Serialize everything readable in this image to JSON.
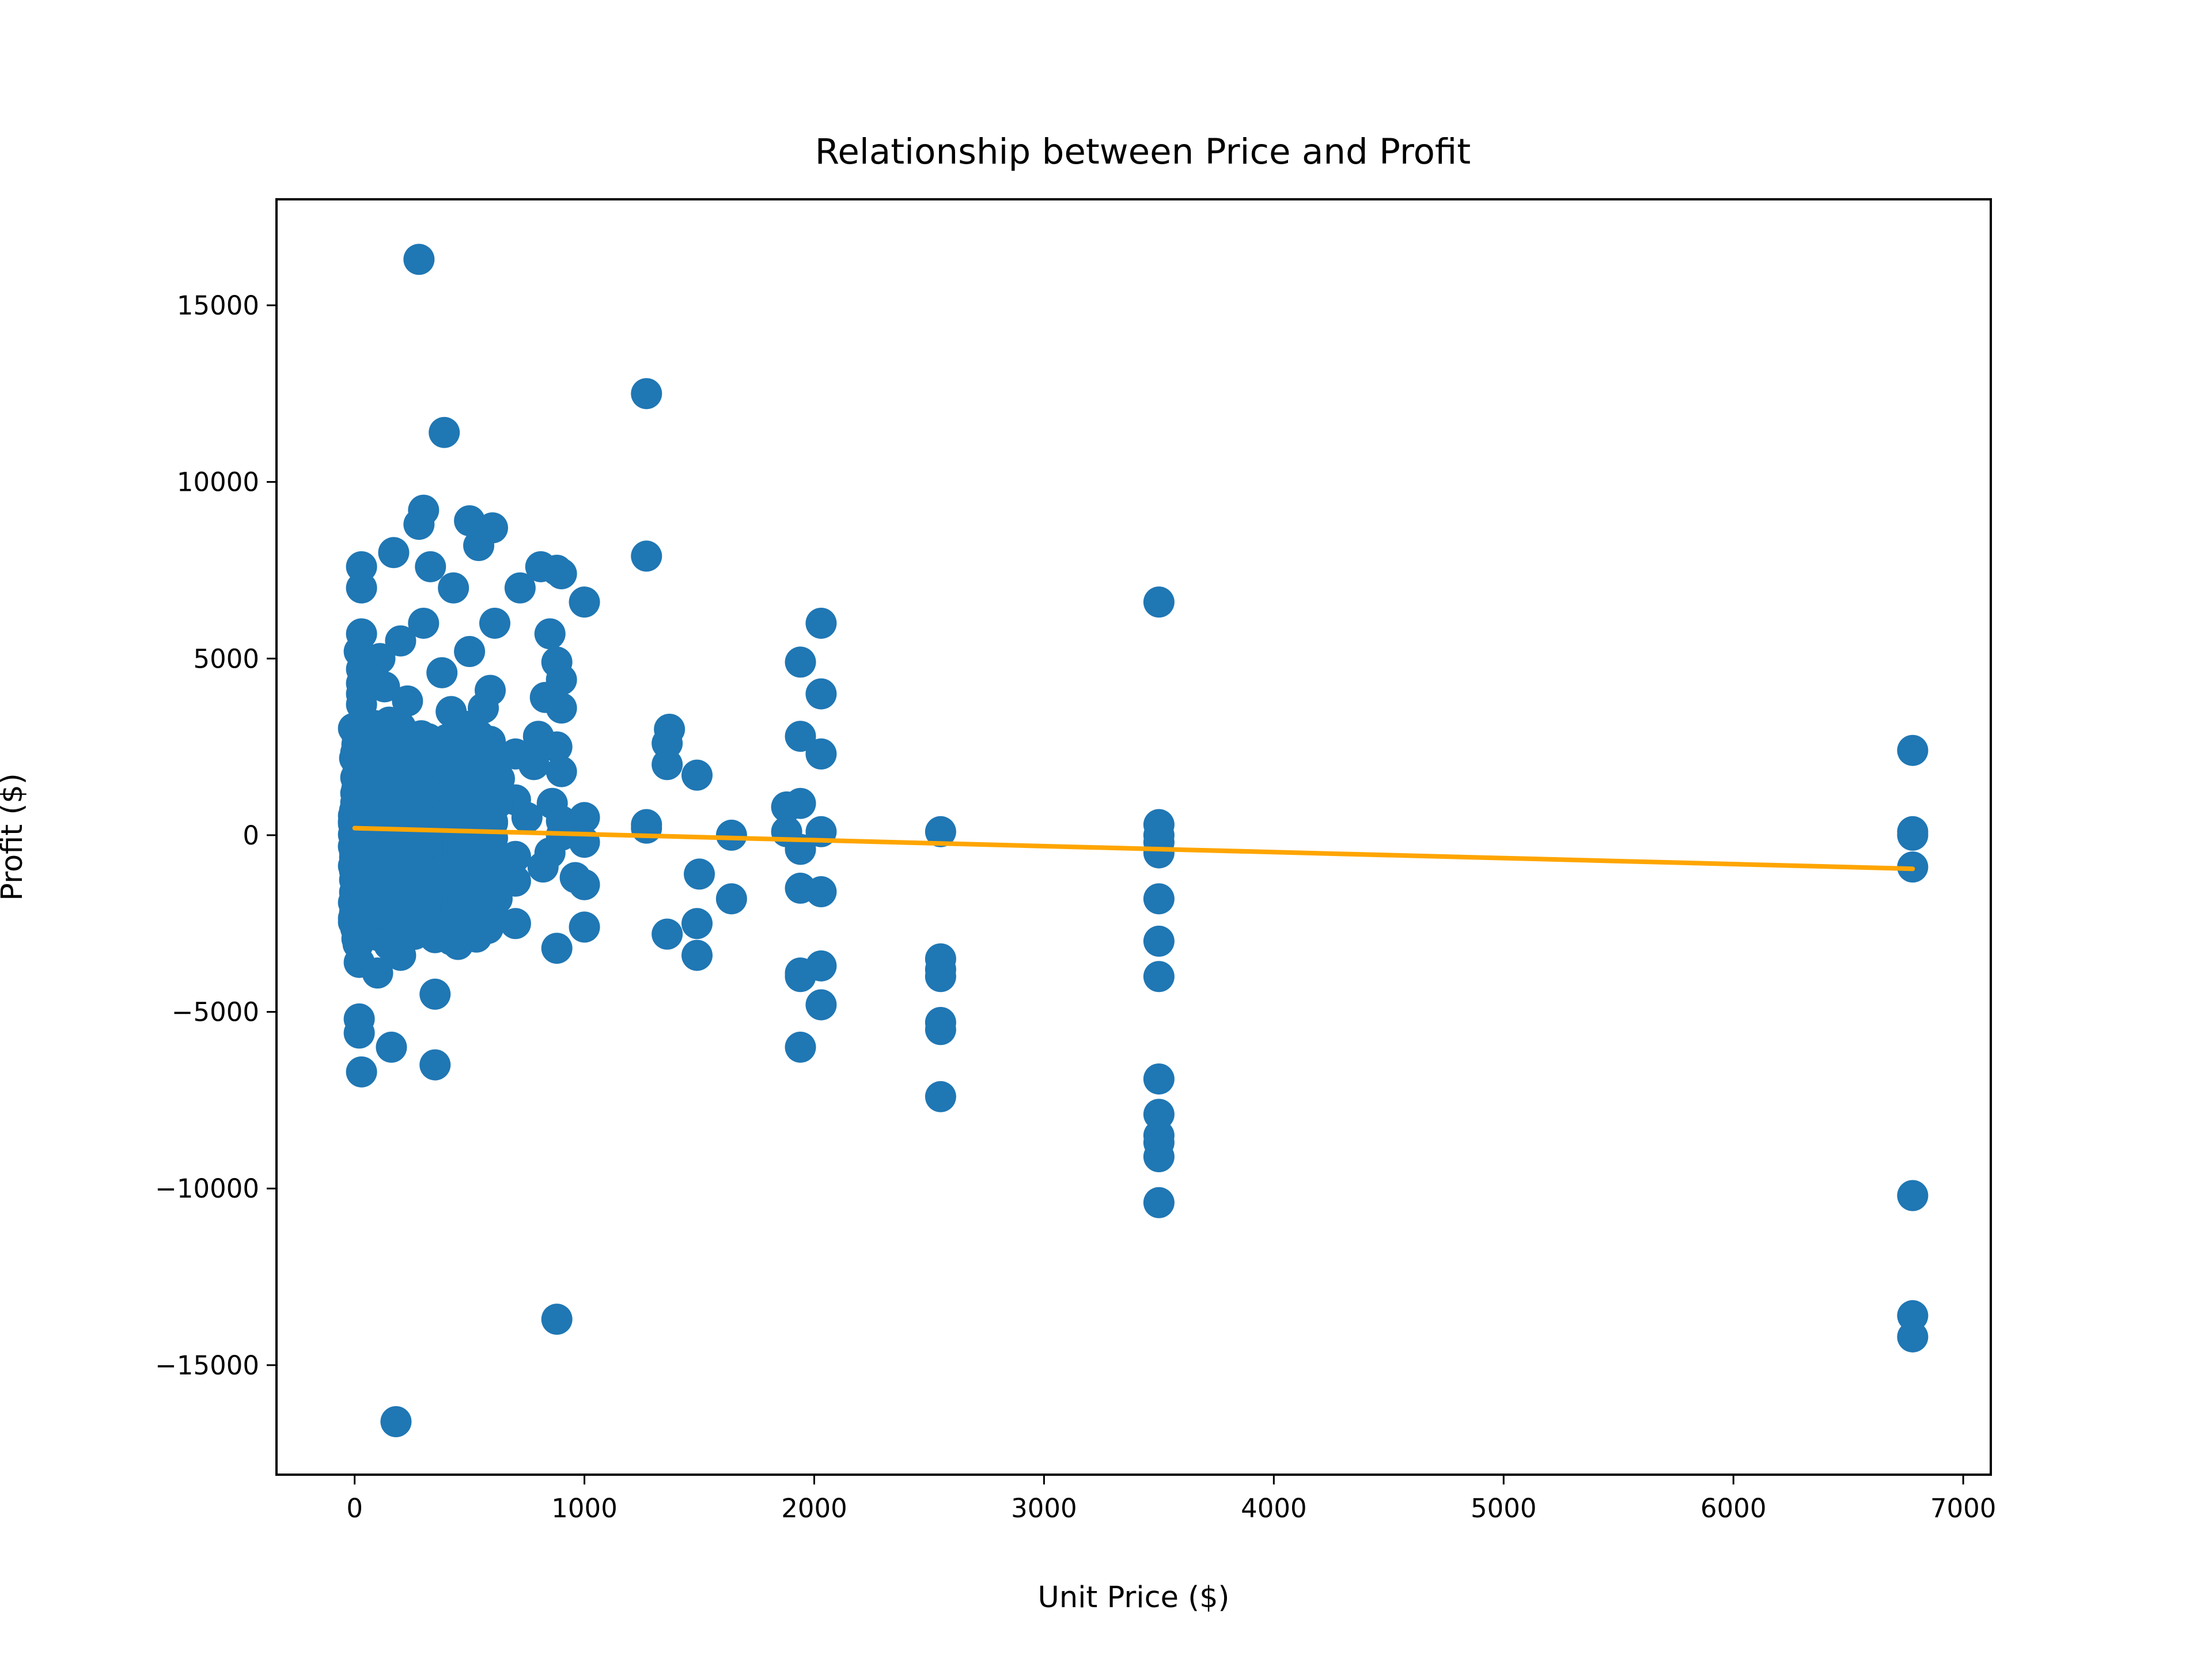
{
  "chart_data": {
    "type": "scatter",
    "title": "Relationship between Price and Profit",
    "xlabel": "Unit Price ($)",
    "ylabel": "Profit ($)",
    "xlim": [
      -340,
      7120
    ],
    "ylim": [
      -18100,
      18000
    ],
    "xticks": [
      0,
      1000,
      2000,
      3000,
      4000,
      5000,
      6000,
      7000
    ],
    "yticks": [
      -15000,
      -10000,
      -5000,
      0,
      5000,
      10000,
      15000
    ],
    "xtick_labels": [
      "0",
      "1000",
      "2000",
      "3000",
      "4000",
      "5000",
      "6000",
      "7000"
    ],
    "ytick_labels": [
      "−15000",
      "−10000",
      "−5000",
      "0",
      "5000",
      "10000",
      "15000"
    ],
    "grid": false,
    "legend": false,
    "colors": {
      "points": "#1f77b4",
      "trend": "#ffa500"
    },
    "series": [
      {
        "type": "scatter",
        "x": [
          280,
          1270,
          390,
          300,
          500,
          600,
          280,
          540,
          900,
          170,
          30,
          30,
          330,
          810,
          880,
          720,
          430,
          1000,
          1270,
          30,
          300,
          610,
          20,
          200,
          110,
          850,
          30,
          500,
          880,
          30,
          30,
          900,
          380,
          130,
          590,
          30,
          230,
          420,
          560,
          830,
          900,
          90,
          130,
          30,
          150,
          280,
          370,
          470,
          540,
          700,
          800,
          880,
          20,
          80,
          220,
          350,
          500,
          630,
          780,
          900,
          40,
          200,
          300,
          420,
          560,
          700,
          860,
          1000,
          950,
          20,
          60,
          250,
          400,
          520,
          620,
          750,
          900,
          1270,
          1270,
          1370,
          1490,
          1640,
          30,
          100,
          200,
          310,
          470,
          560,
          700,
          850,
          900,
          1000,
          20,
          140,
          260,
          400,
          550,
          680,
          820,
          960,
          1000,
          40,
          230,
          330,
          470,
          620,
          700,
          1000,
          1360,
          1490,
          1490,
          1640,
          30,
          110,
          220,
          350,
          440,
          700,
          880,
          20,
          200,
          340,
          20,
          20,
          100,
          20,
          350,
          350,
          160,
          30,
          180,
          880,
          1360,
          1360,
          1500,
          1880,
          1940,
          1940,
          1940,
          1940,
          1940,
          1880,
          1940,
          1940,
          1940,
          2030,
          2030,
          2030,
          2030,
          2030,
          2030,
          2030,
          2550,
          2550,
          2550,
          2550,
          2550,
          2550,
          2550,
          3500,
          3500,
          3500,
          3500,
          3500,
          3500,
          3500,
          3500,
          3500,
          3500,
          3500,
          3500,
          3500,
          3500,
          6780,
          6780,
          6780,
          6780,
          6780,
          6780,
          6780
        ],
        "y": [
          16300,
          12500,
          11400,
          9200,
          8900,
          8700,
          8800,
          8200,
          7400,
          8000,
          7600,
          7000,
          7600,
          7600,
          7500,
          7000,
          7000,
          6600,
          7900,
          5700,
          6000,
          6000,
          5200,
          5500,
          5000,
          5700,
          4700,
          5200,
          4900,
          4300,
          4000,
          4400,
          4600,
          4200,
          4100,
          3700,
          3800,
          3500,
          3600,
          3900,
          3600,
          3100,
          2500,
          2900,
          3200,
          2700,
          2600,
          2400,
          2500,
          2300,
          2800,
          2500,
          2200,
          1900,
          1800,
          2100,
          1700,
          1600,
          2000,
          1800,
          1400,
          1300,
          1200,
          1100,
          1200,
          1000,
          900,
          500,
          300,
          1000,
          700,
          800,
          600,
          700,
          900,
          500,
          400,
          300,
          200,
          3000,
          1700,
          0,
          -200,
          -100,
          -300,
          -200,
          -400,
          -100,
          -600,
          -500,
          0,
          -200,
          -900,
          -700,
          -800,
          -1000,
          -1100,
          -800,
          -900,
          -1200,
          -1400,
          -1500,
          -1600,
          -1400,
          -1700,
          -1800,
          -1300,
          -2600,
          -2800,
          -2500,
          -3400,
          -1800,
          -2000,
          -2200,
          -2400,
          -2900,
          -2700,
          -2500,
          -3200,
          -3000,
          -3400,
          -2700,
          -3600,
          -5200,
          -3900,
          -5600,
          -4500,
          -6500,
          -6000,
          -6700,
          -16600,
          -13700,
          2600,
          2000,
          -1100,
          800,
          4900,
          2800,
          900,
          -400,
          -1500,
          100,
          -4000,
          -6000,
          -3900,
          6000,
          4000,
          2300,
          100,
          -1600,
          -3700,
          -4800,
          100,
          -3500,
          -3800,
          -4000,
          -5300,
          -5500,
          -7400,
          6600,
          300,
          0,
          -200,
          -500,
          -1800,
          -3000,
          -4000,
          -6900,
          -7900,
          -8500,
          -8700,
          -9100,
          -10400,
          2400,
          100,
          -900,
          -10200,
          -13600,
          -14200,
          0
        ]
      },
      {
        "type": "line",
        "name": "trend",
        "x": [
          0,
          6780
        ],
        "y": [
          200,
          -950
        ]
      }
    ],
    "extra_points_x": [
      -5,
      0,
      5,
      10,
      15,
      20,
      25,
      30,
      40,
      50,
      60,
      70,
      80,
      90,
      100,
      110,
      120,
      130,
      140,
      150,
      160,
      170,
      180,
      190,
      200,
      210,
      220,
      230,
      240,
      250,
      260,
      270,
      280,
      290,
      300,
      310,
      320,
      330,
      340,
      350,
      360,
      370,
      380,
      390,
      400,
      410,
      420,
      430,
      440,
      450,
      460,
      470,
      480,
      490,
      500,
      510,
      520,
      530,
      540,
      550,
      560,
      570,
      580,
      590,
      600
    ]
  }
}
